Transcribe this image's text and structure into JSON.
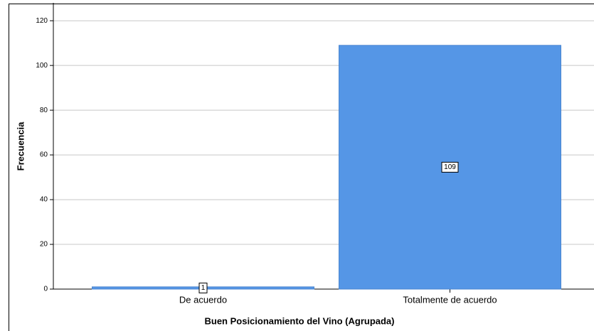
{
  "chart_data": {
    "type": "bar",
    "x_label": "Buen Posicionamiento del Vino (Agrupada)",
    "y_label": "Frecuencia",
    "categories": [
      "De acuerdo",
      "Totalmente de acuerdo"
    ],
    "values": [
      1,
      109
    ],
    "color": "#5596e6",
    "ylim": [
      0,
      128
    ],
    "yticks": [
      0,
      20,
      40,
      60,
      80,
      100,
      120
    ],
    "grid": true
  }
}
